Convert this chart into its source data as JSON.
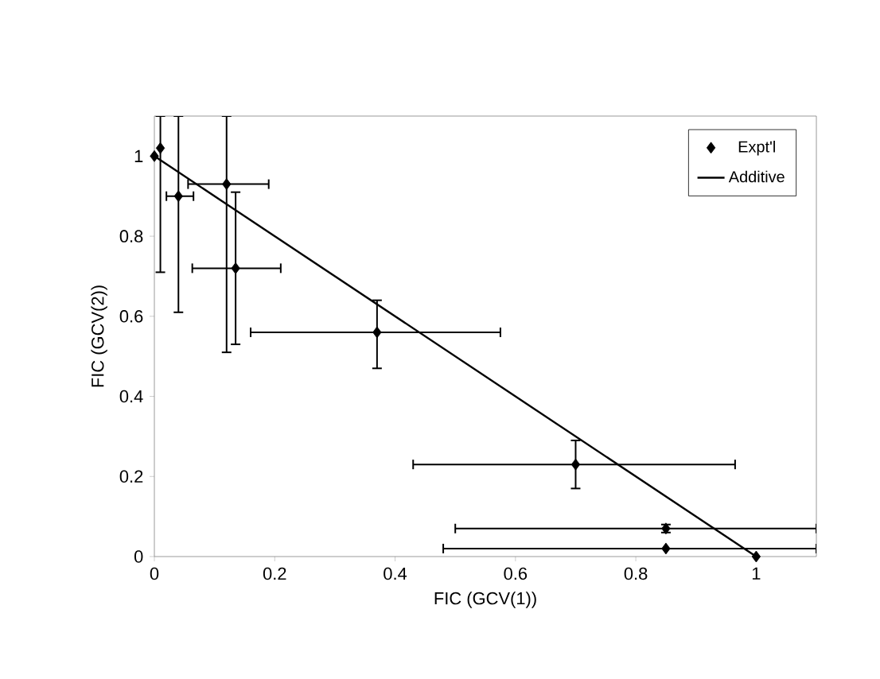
{
  "chart_data": {
    "type": "scatter",
    "xlabel": "FIC (GCV(1))",
    "ylabel": "FIC (GCV(2))",
    "xlim": [
      0,
      1.1
    ],
    "ylim": [
      0,
      1.1
    ],
    "xticks": [
      0,
      0.2,
      0.4,
      0.6,
      0.8,
      1
    ],
    "yticks": [
      0,
      0.2,
      0.4,
      0.6,
      0.8,
      1
    ],
    "legend": "top right",
    "grid": false,
    "series": [
      {
        "name": "Expt'l",
        "marker": "diamond",
        "color": "#000000",
        "x": [
          0,
          0.01,
          0.04,
          0.12,
          0.135,
          0.37,
          0.7,
          0.85,
          0.85,
          1
        ],
        "values": [
          1,
          1.02,
          0.9,
          0.93,
          0.72,
          0.56,
          0.23,
          0.07,
          0.02,
          0
        ],
        "errors": [
          null,
          [
            0.71,
            1.1
          ],
          [
            0.61,
            1.1
          ],
          [
            0.51,
            1.1
          ],
          [
            0.53,
            0.91
          ],
          [
            0.47,
            0.64
          ],
          [
            0.17,
            0.29
          ],
          [
            0.06,
            0.08
          ],
          null,
          null
        ],
        "xerrors": [
          null,
          null,
          [
            0.02,
            0.065
          ],
          [
            0.056,
            0.19
          ],
          [
            0.063,
            0.21
          ],
          [
            0.16,
            0.575
          ],
          [
            0.43,
            0.965
          ],
          [
            0.5,
            1.1
          ],
          [
            0.48,
            1.1
          ],
          null
        ]
      },
      {
        "name": "Additive",
        "type": "line",
        "marker": "none",
        "line_style": "solid",
        "color": "#000000",
        "x": [
          0,
          1
        ],
        "values": [
          1,
          0
        ]
      }
    ]
  }
}
